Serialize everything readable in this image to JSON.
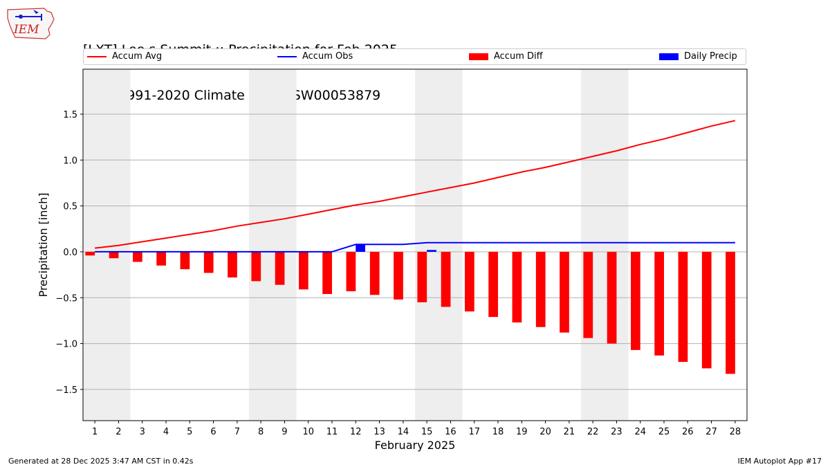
{
  "header": {
    "title_line1": "[LXT] Lee s Summit :: Precipitation for Feb 2025",
    "title_line2": "NCEI 1991-2020 Climate Site: USW00053879",
    "logo_text": "IEM"
  },
  "footer": {
    "generated": "Generated at 28 Dec 2025 3:47 AM CST in 0.42s",
    "app": "IEM Autoplot App #17"
  },
  "colors": {
    "accum_avg": "#ff0000",
    "accum_obs": "#0000ff",
    "accum_diff": "#ff0000",
    "daily_precip": "#0000ff",
    "weekend_shade": "#eeeeee",
    "grid": "#b0b0b0"
  },
  "chart_data": {
    "type": "line",
    "xlabel": "February 2025",
    "ylabel": "Precipitation [inch]",
    "ylim": [
      -1.84,
      1.99
    ],
    "xlim": [
      0.5,
      28.5
    ],
    "yticks": [
      -1.5,
      -1.0,
      -0.5,
      0.0,
      0.5,
      1.0,
      1.5
    ],
    "ytick_labels": [
      "−1.5",
      "−1.0",
      "−0.5",
      "0.0",
      "0.5",
      "1.0",
      "1.5"
    ],
    "grid": "horizontal",
    "legend_position": "top",
    "x": [
      1,
      2,
      3,
      4,
      5,
      6,
      7,
      8,
      9,
      10,
      11,
      12,
      13,
      14,
      15,
      16,
      17,
      18,
      19,
      20,
      21,
      22,
      23,
      24,
      25,
      26,
      27,
      28
    ],
    "x_tick_labels": [
      "1",
      "2",
      "3",
      "4",
      "5",
      "6",
      "7",
      "8",
      "9",
      "10",
      "11",
      "12",
      "13",
      "14",
      "15",
      "16",
      "17",
      "18",
      "19",
      "20",
      "21",
      "22",
      "23",
      "24",
      "25",
      "26",
      "27",
      "28"
    ],
    "shaded_ranges": [
      [
        0.5,
        2.5
      ],
      [
        7.5,
        9.5
      ],
      [
        14.5,
        16.5
      ],
      [
        21.5,
        23.5
      ]
    ],
    "series": [
      {
        "name": "Accum Avg",
        "kind": "line",
        "color": "#ff0000",
        "values": [
          0.04,
          0.07,
          0.11,
          0.15,
          0.19,
          0.23,
          0.28,
          0.32,
          0.36,
          0.41,
          0.46,
          0.51,
          0.55,
          0.6,
          0.65,
          0.7,
          0.75,
          0.81,
          0.87,
          0.92,
          0.98,
          1.04,
          1.1,
          1.17,
          1.23,
          1.3,
          1.37,
          1.43
        ]
      },
      {
        "name": "Accum Obs",
        "kind": "line",
        "color": "#0000ff",
        "values": [
          0,
          0,
          0,
          0,
          0,
          0,
          0,
          0,
          0,
          0,
          0,
          0.08,
          0.08,
          0.08,
          0.1,
          0.1,
          0.1,
          0.1,
          0.1,
          0.1,
          0.1,
          0.1,
          0.1,
          0.1,
          0.1,
          0.1,
          0.1,
          0.1
        ]
      },
      {
        "name": "Accum Diff",
        "kind": "bar",
        "color": "#ff0000",
        "values": [
          -0.04,
          -0.07,
          -0.11,
          -0.15,
          -0.19,
          -0.23,
          -0.28,
          -0.32,
          -0.36,
          -0.41,
          -0.46,
          -0.43,
          -0.47,
          -0.52,
          -0.55,
          -0.6,
          -0.65,
          -0.71,
          -0.77,
          -0.82,
          -0.88,
          -0.94,
          -1.0,
          -1.07,
          -1.13,
          -1.2,
          -1.27,
          -1.33
        ]
      },
      {
        "name": "Daily Precip",
        "kind": "bar",
        "color": "#0000ff",
        "values": [
          0,
          0,
          0,
          0,
          0,
          0,
          0,
          0,
          0,
          0,
          0,
          0.08,
          0,
          0,
          0.02,
          0,
          0,
          0,
          0,
          0,
          0,
          0,
          0,
          0,
          0,
          0,
          0,
          0
        ]
      }
    ]
  }
}
